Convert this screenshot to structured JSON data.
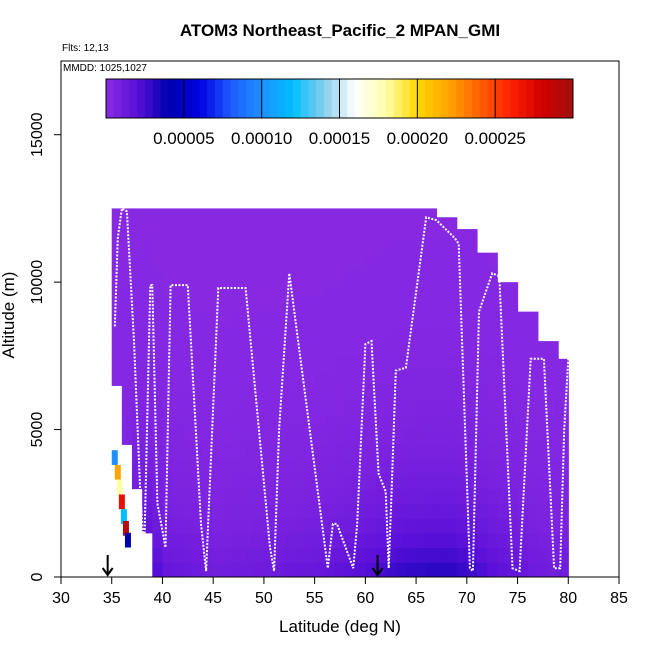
{
  "chart_data": {
    "type": "heatmap",
    "title": "ATOM3 Northeast_Pacific_2 MPAN_GMI",
    "flights_label": "Flts: 12,13",
    "mmdd_label": "MMDD: 1025,1027",
    "xlabel": "Latitude (deg N)",
    "ylabel": "Altitude (m)",
    "xlim": [
      30,
      85
    ],
    "ylim": [
      0,
      17500
    ],
    "x_ticks": [
      "30",
      "35",
      "40",
      "45",
      "50",
      "55",
      "60",
      "65",
      "70",
      "75",
      "80",
      "85"
    ],
    "y_ticks": [
      "0",
      "5000",
      "10000",
      "15000"
    ],
    "colorbar": {
      "min": 0,
      "max": 0.0003,
      "tick_labels": [
        "0.00005",
        "0.00010",
        "0.00015",
        "0.00020",
        "0.00025"
      ],
      "colors": [
        "#8a2be2",
        "#5a10d8",
        "#0000b0",
        "#0000e0",
        "#1e5aff",
        "#1e90ff",
        "#00bfff",
        "#87ceeb",
        "#ffffff",
        "#ffffaa",
        "#ffd700",
        "#ffa500",
        "#ff6000",
        "#ff2000",
        "#d00000",
        "#a01010"
      ]
    },
    "curtain": {
      "background_value": 1.5e-06,
      "columns": [
        {
          "lat": 35.5,
          "top": 12500,
          "low": 1.2e-05
        },
        {
          "lat": 37.5,
          "top": 12500,
          "low": 3e-05
        },
        {
          "lat": 40.0,
          "top": 12500,
          "low": 1.5e-05
        },
        {
          "lat": 45.0,
          "top": 12500,
          "low": 1e-05
        },
        {
          "lat": 50.0,
          "top": 12500,
          "low": 1.2e-05
        },
        {
          "lat": 55.0,
          "top": 12500,
          "low": 1.5e-05
        },
        {
          "lat": 60.0,
          "top": 12500,
          "low": 2.2e-05
        },
        {
          "lat": 63.0,
          "top": 12500,
          "low": 2.8e-05
        },
        {
          "lat": 66.0,
          "top": 12200,
          "low": 3e-05
        },
        {
          "lat": 68.0,
          "top": 11800,
          "low": 3e-05
        },
        {
          "lat": 70.0,
          "top": 11000,
          "low": 2.6e-05
        },
        {
          "lat": 72.0,
          "top": 10000,
          "low": 2e-05
        },
        {
          "lat": 74.0,
          "top": 9000,
          "low": 1.6e-05
        },
        {
          "lat": 76.0,
          "top": 8000,
          "low": 1.2e-05
        },
        {
          "lat": 78.0,
          "top": 7400,
          "low": 1e-05
        },
        {
          "lat": 80.0,
          "top": 7400,
          "low": 1.2e-05
        }
      ],
      "edge_cells": [
        {
          "lat": 35.3,
          "alt": 3800,
          "value": 0.0001
        },
        {
          "lat": 35.6,
          "alt": 3300,
          "value": 0.00022
        },
        {
          "lat": 35.8,
          "alt": 2800,
          "value": 0.00018
        },
        {
          "lat": 36.0,
          "alt": 2300,
          "value": 0.00027
        },
        {
          "lat": 36.2,
          "alt": 1800,
          "value": 0.00012
        },
        {
          "lat": 36.4,
          "alt": 1400,
          "value": 0.00029
        },
        {
          "lat": 36.6,
          "alt": 1000,
          "value": 4e-05
        }
      ]
    },
    "flight_track": {
      "lat": [
        35.3,
        35.6,
        36.0,
        36.5,
        37.2,
        37.8,
        38.2,
        38.8,
        39.0,
        39.5,
        40.3,
        40.8,
        42.5,
        43.8,
        44.3,
        45.5,
        48.2,
        50.6,
        51.0,
        51.5,
        52.5,
        56.3,
        56.8,
        57.2,
        58.8,
        59.2,
        60.0,
        60.6,
        61.3,
        62.0,
        62.3,
        62.6,
        63.0,
        64.0,
        66.0,
        67.0,
        68.8,
        69.2,
        70.3,
        70.6,
        71.2,
        72.5,
        73.2,
        74.5,
        75.2,
        76.3,
        77.6,
        78.6,
        79.2,
        79.6,
        80.0
      ],
      "alt": [
        8500,
        11500,
        12500,
        12400,
        8000,
        3000,
        800,
        9900,
        9900,
        2500,
        1000,
        9900,
        9900,
        1800,
        200,
        9800,
        9800,
        1000,
        200,
        5000,
        10300,
        300,
        1800,
        1800,
        300,
        1800,
        7900,
        8000,
        3500,
        2900,
        300,
        3000,
        7000,
        7100,
        12200,
        12100,
        11500,
        11300,
        300,
        200,
        9000,
        10300,
        10200,
        300,
        200,
        7400,
        7400,
        300,
        300,
        5000,
        7400
      ]
    },
    "arrows": [
      {
        "lat": 34.6,
        "label": "flight start marker"
      },
      {
        "lat": 61.2,
        "label": "flight turnaround marker"
      }
    ]
  }
}
